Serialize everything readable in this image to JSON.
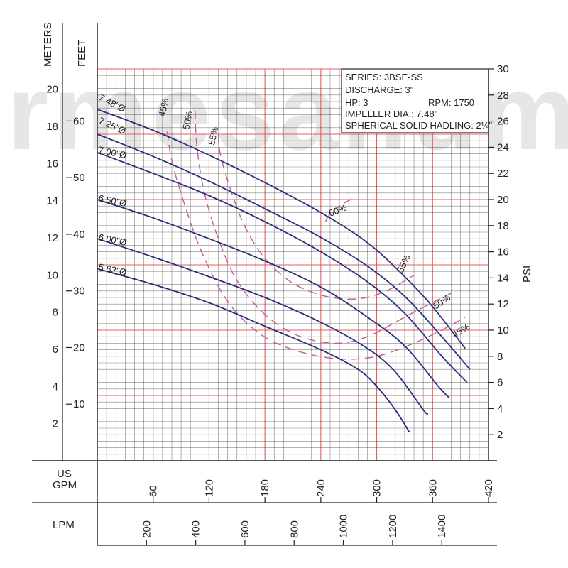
{
  "chart_data": {
    "type": "line",
    "title": "",
    "info_box": [
      "SERIES: 3BSE-SS",
      "DISCHARGE: 3\"",
      "HP: 3",
      "RPM: 1750",
      "IMPELLER DIA.: 7.48\"",
      "SPHERICAL SOLID HADLING: 2¼\""
    ],
    "axes": {
      "meters_label": "METERS",
      "feet_label": "FEET",
      "psi_label": "PSI",
      "gpm_label_1": "US",
      "gpm_label_2": "GPM",
      "lpm_label": "LPM",
      "gpm_ticks": [
        "60",
        "120",
        "180",
        "240",
        "300",
        "360",
        "420"
      ],
      "lpm_ticks": [
        "200",
        "400",
        "600",
        "800",
        "1000",
        "1200",
        "1400"
      ],
      "meters_ticks": [
        "2",
        "4",
        "6",
        "8",
        "10",
        "12",
        "14",
        "16",
        "18",
        "20"
      ],
      "feet_ticks": [
        "10",
        "20",
        "30",
        "40",
        "50",
        "60"
      ],
      "psi_ticks": [
        "2",
        "4",
        "6",
        "8",
        "10",
        "12",
        "14",
        "16",
        "18",
        "20",
        "22",
        "24",
        "26",
        "28",
        "30"
      ],
      "xlim_gpm": [
        0,
        420
      ],
      "ylim_psi": [
        0,
        30
      ]
    },
    "x_unit": "US GPM",
    "y_unit": "PSI",
    "series": [
      {
        "name": "7.48\"Ø",
        "x": [
          0,
          60,
          120,
          180,
          240,
          290,
          330,
          360,
          395
        ],
        "y": [
          26.9,
          25.3,
          23.4,
          21.3,
          19.0,
          16.7,
          14.1,
          11.8,
          8.6
        ]
      },
      {
        "name": "7.25\"Ø",
        "x": [
          0,
          60,
          120,
          180,
          240,
          290,
          330,
          370,
          400
        ],
        "y": [
          25.0,
          23.3,
          21.4,
          19.3,
          17.1,
          14.9,
          12.6,
          9.5,
          7.0
        ]
      },
      {
        "name": "7.00\"Ø",
        "x": [
          0,
          60,
          120,
          180,
          240,
          290,
          330,
          370,
          397
        ],
        "y": [
          23.6,
          22.0,
          20.3,
          18.3,
          16.0,
          13.7,
          11.3,
          8.0,
          6.0
        ]
      },
      {
        "name": "6.50\"Ø",
        "x": [
          0,
          60,
          120,
          180,
          240,
          290,
          330,
          365,
          378
        ],
        "y": [
          20.0,
          18.6,
          17.0,
          15.3,
          13.3,
          11.0,
          8.8,
          5.8,
          4.8
        ]
      },
      {
        "name": "6.00\"Ø",
        "x": [
          0,
          60,
          120,
          180,
          240,
          290,
          320,
          350,
          355
        ],
        "y": [
          17.0,
          15.6,
          14.1,
          12.5,
          10.6,
          8.6,
          6.8,
          3.9,
          3.6
        ]
      },
      {
        "name": "5.62\"Ø",
        "x": [
          0,
          60,
          120,
          180,
          240,
          280,
          300,
          320,
          335
        ],
        "y": [
          14.7,
          13.5,
          12.1,
          10.3,
          8.5,
          7.0,
          5.7,
          3.9,
          2.2
        ]
      }
    ],
    "efficiency_curves": [
      {
        "name": "45%",
        "x": [
          75,
          80,
          92,
          112,
          140,
          175,
          215,
          260,
          300,
          340,
          375,
          395
        ],
        "y": [
          25.2,
          23.0,
          20.0,
          16.0,
          12.2,
          9.7,
          8.4,
          7.8,
          8.0,
          9.0,
          10.2,
          11.0
        ]
      },
      {
        "name": "50%",
        "x": [
          105,
          107,
          115,
          130,
          150,
          180,
          215,
          255,
          290,
          330,
          365,
          385
        ],
        "y": [
          26.8,
          24.0,
          20.5,
          17.0,
          13.8,
          11.2,
          9.6,
          9.0,
          9.5,
          11.0,
          12.3,
          13.0
        ]
      },
      {
        "name": "55%",
        "x": [
          130,
          132,
          142,
          158,
          180,
          210,
          245,
          280,
          310,
          340
        ],
        "y": [
          25.0,
          23.5,
          21.0,
          18.0,
          15.5,
          13.6,
          12.6,
          12.4,
          13.0,
          14.2
        ]
      },
      {
        "name": "60%",
        "x": [
          245,
          250,
          262,
          275
        ],
        "y": [
          18.3,
          18.9,
          19.6,
          20.1
        ]
      }
    ],
    "efficiency_labels": [
      "45%",
      "50%",
      "55%",
      "60%",
      "55%",
      "50%",
      "45%"
    ],
    "grid": true,
    "colors": {
      "curve": "#2a2f7a",
      "efficiency": "#c65a93",
      "grid_major": "#e05050",
      "grid_minor": "#222222",
      "watermark": "#d8d8d8"
    },
    "watermark_text": "rmesanum"
  }
}
